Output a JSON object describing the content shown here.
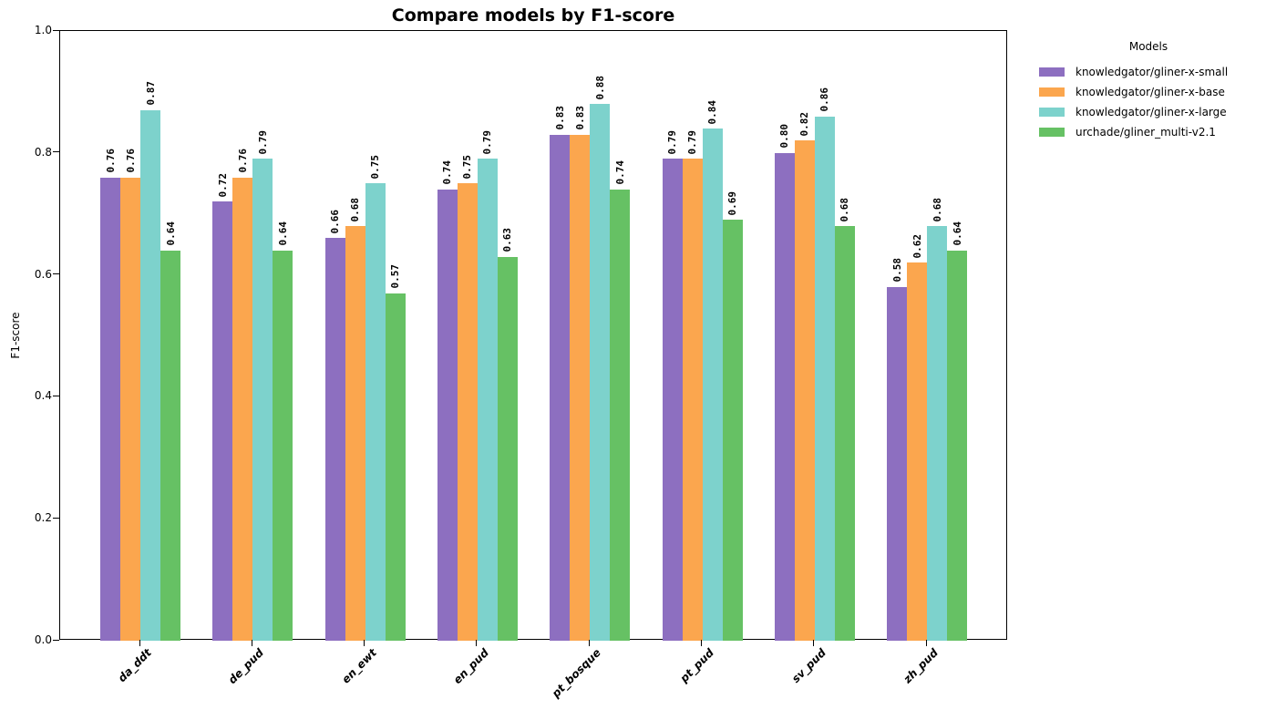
{
  "chart_data": {
    "type": "bar",
    "title": "Compare models by F1-score",
    "xlabel": "",
    "ylabel": "F1-score",
    "ylim": [
      0.0,
      1.0
    ],
    "ytick_labels": [
      "0.0",
      "0.2",
      "0.4",
      "0.6",
      "0.8",
      "1.0"
    ],
    "grid": false,
    "legend": {
      "title": "Models",
      "position": "outside-upper-right"
    },
    "categories": [
      "da_ddt",
      "de_pud",
      "en_ewt",
      "en_pud",
      "pt_bosque",
      "pt_pud",
      "sv_pud",
      "zh_pud"
    ],
    "series": [
      {
        "name": "knowledgator/gliner-x-small",
        "color": "#8d6fc0",
        "values": [
          0.76,
          0.72,
          0.66,
          0.74,
          0.83,
          0.79,
          0.8,
          0.58
        ]
      },
      {
        "name": "knowledgator/gliner-x-base",
        "color": "#fba64e",
        "values": [
          0.76,
          0.76,
          0.68,
          0.75,
          0.83,
          0.79,
          0.82,
          0.62
        ]
      },
      {
        "name": "knowledgator/gliner-x-large",
        "color": "#7dd2cc",
        "values": [
          0.87,
          0.79,
          0.75,
          0.79,
          0.88,
          0.84,
          0.86,
          0.68
        ]
      },
      {
        "name": "urchade/gliner_multi-v2.1",
        "color": "#66c164",
        "values": [
          0.64,
          0.64,
          0.57,
          0.63,
          0.74,
          0.69,
          0.68,
          0.64
        ]
      }
    ],
    "bar_value_labels": true,
    "bar_value_decimals": 2
  }
}
